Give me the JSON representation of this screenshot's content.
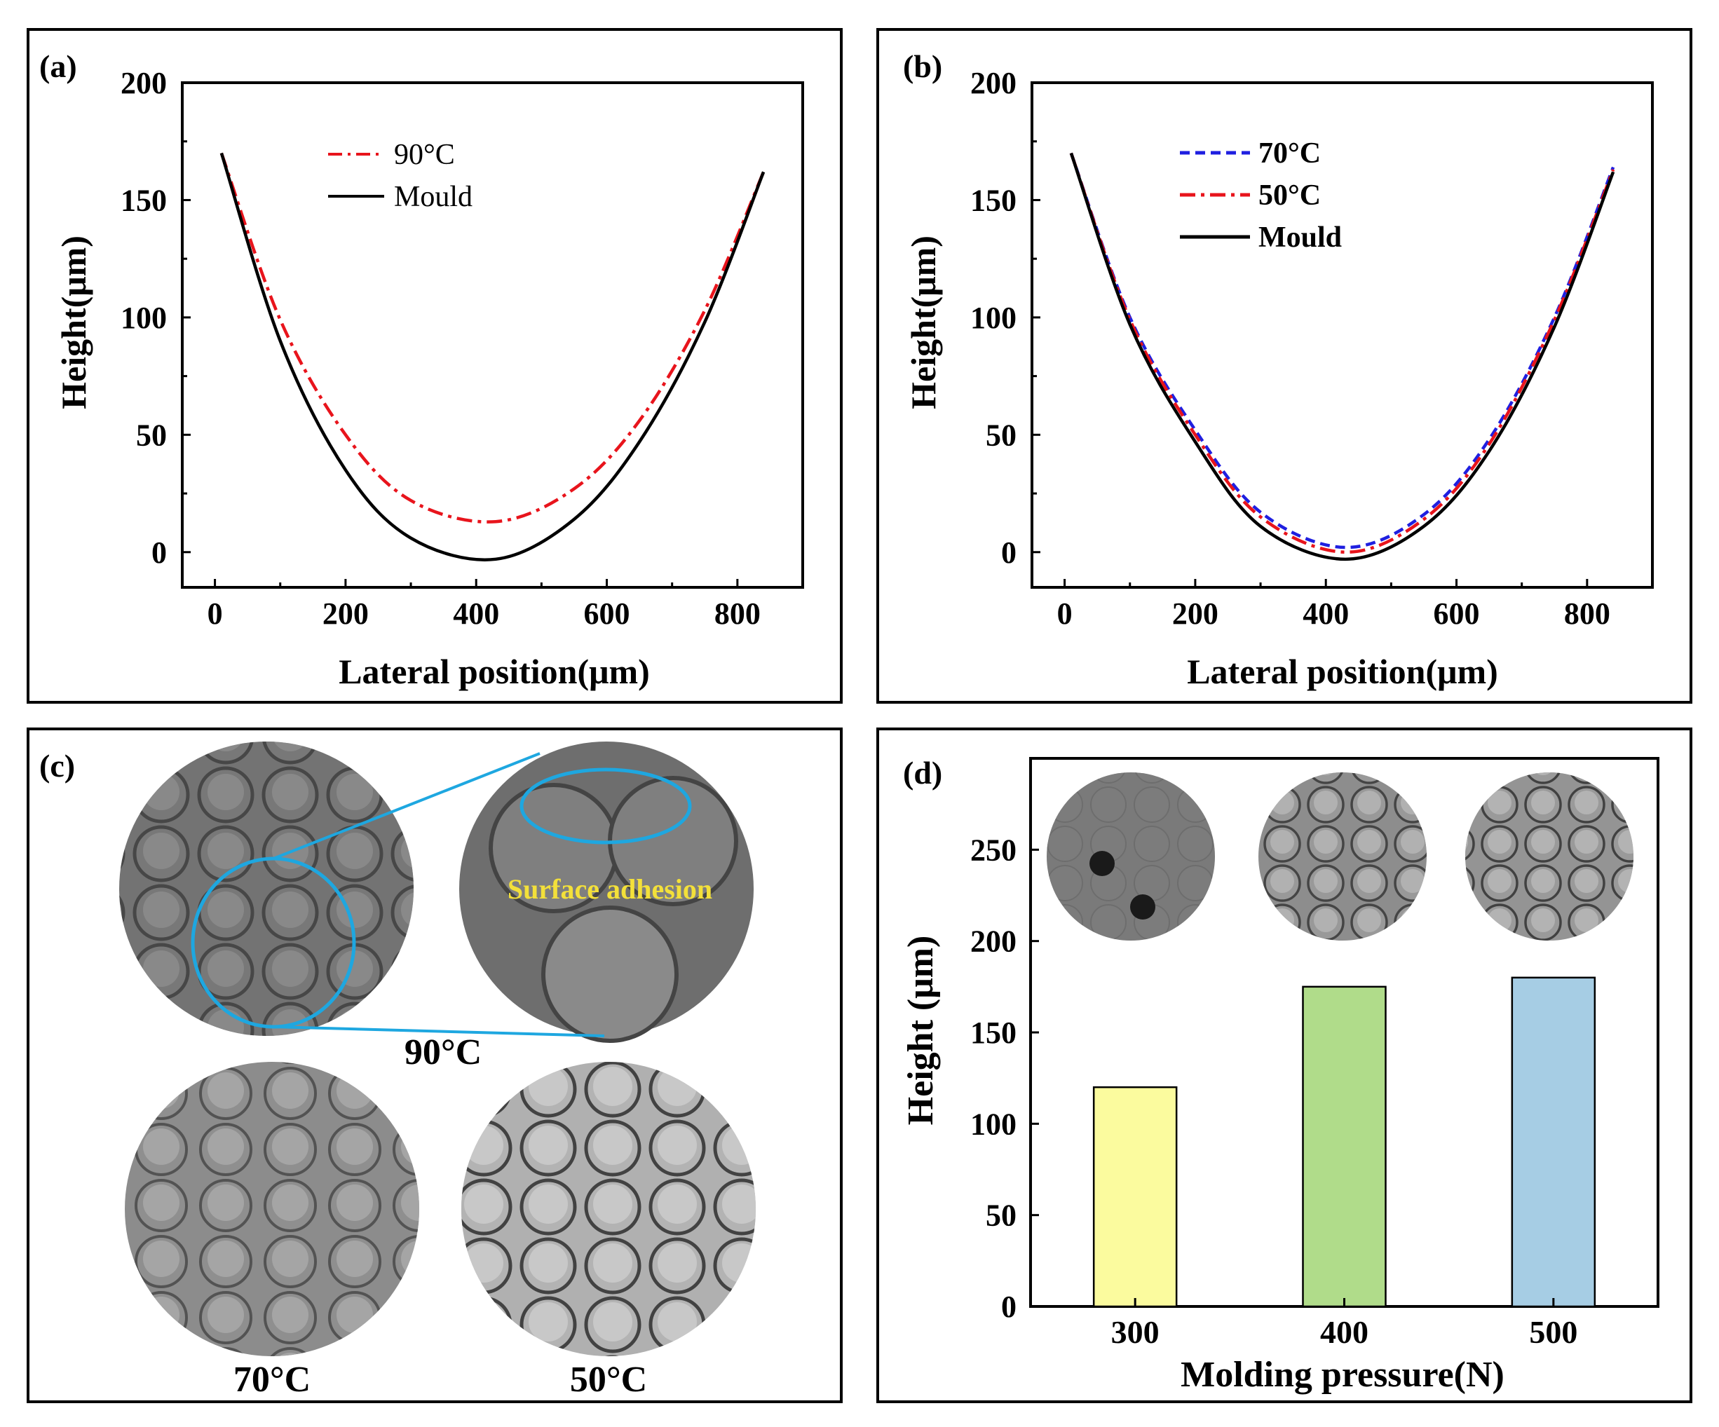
{
  "panels": {
    "a": {
      "label": "(a)",
      "xlabel": "Lateral position(μm)",
      "ylabel": "Height(μm)",
      "xticks": [
        "0",
        "200",
        "400",
        "600",
        "800"
      ],
      "yticks": [
        "0",
        "50",
        "100",
        "150",
        "200"
      ],
      "legend": [
        "90°C",
        "Mould"
      ]
    },
    "b": {
      "label": "(b)",
      "xlabel": "Lateral position(μm)",
      "ylabel": "Height(μm)",
      "xticks": [
        "0",
        "200",
        "400",
        "600",
        "800"
      ],
      "yticks": [
        "0",
        "50",
        "100",
        "150",
        "200"
      ],
      "legend": [
        "70°C",
        "50°C",
        "Mould"
      ]
    },
    "c": {
      "label": "(c)",
      "annotation": "Surface adhesion",
      "captions": [
        "90°C",
        "70°C",
        "50°C"
      ]
    },
    "d": {
      "label": "(d)",
      "xlabel": "Molding pressure(N)",
      "ylabel": "Height (μm)",
      "xticks": [
        "300",
        "400",
        "500"
      ],
      "yticks": [
        "0",
        "50",
        "100",
        "150",
        "200",
        "250"
      ]
    }
  },
  "colors": {
    "mould": "#000000",
    "t90": "#e8141c",
    "t70": "#1f1fe0",
    "t50": "#e8141c",
    "bar300": "#fbfb9e",
    "bar400": "#b0dc8a",
    "bar500": "#a6cde4",
    "highlight": "#1ea7e0",
    "annotation": "#f3e03a"
  },
  "chart_data": [
    {
      "panel": "a",
      "type": "line",
      "xlim": [
        -50,
        900
      ],
      "ylim": [
        -15,
        200
      ],
      "series": [
        {
          "name": "90°C",
          "style": "dash-dot",
          "x": [
            10,
            100,
            200,
            300,
            430,
            550,
            650,
            750,
            840
          ],
          "y": [
            170,
            99,
            50,
            22,
            13,
            27,
            56,
            103,
            162
          ]
        },
        {
          "name": "Mould",
          "style": "solid",
          "x": [
            10,
            100,
            200,
            300,
            430,
            550,
            650,
            750,
            840
          ],
          "y": [
            170,
            90,
            35,
            6,
            -3,
            14,
            47,
            98,
            162
          ]
        }
      ]
    },
    {
      "panel": "b",
      "type": "line",
      "xlim": [
        -50,
        900
      ],
      "ylim": [
        -15,
        200
      ],
      "series": [
        {
          "name": "70°C",
          "style": "dashed",
          "x": [
            10,
            100,
            200,
            300,
            430,
            550,
            650,
            750,
            840
          ],
          "y": [
            170,
            100,
            52,
            17,
            2,
            16,
            48,
            100,
            164
          ]
        },
        {
          "name": "50°C",
          "style": "dash-dot",
          "x": [
            10,
            100,
            200,
            300,
            430,
            550,
            650,
            750,
            840
          ],
          "y": [
            170,
            99,
            50,
            15,
            0,
            14,
            46,
            99,
            163
          ]
        },
        {
          "name": "Mould",
          "style": "solid",
          "x": [
            10,
            100,
            200,
            300,
            430,
            550,
            650,
            750,
            840
          ],
          "y": [
            170,
            97,
            47,
            11,
            -3,
            11,
            43,
            96,
            162
          ]
        }
      ]
    },
    {
      "panel": "d",
      "type": "bar",
      "categories": [
        "300",
        "400",
        "500"
      ],
      "values": [
        120,
        175,
        180
      ],
      "ylim": [
        0,
        300
      ],
      "xlabel": "Molding pressure(N)",
      "ylabel": "Height (μm)"
    }
  ]
}
